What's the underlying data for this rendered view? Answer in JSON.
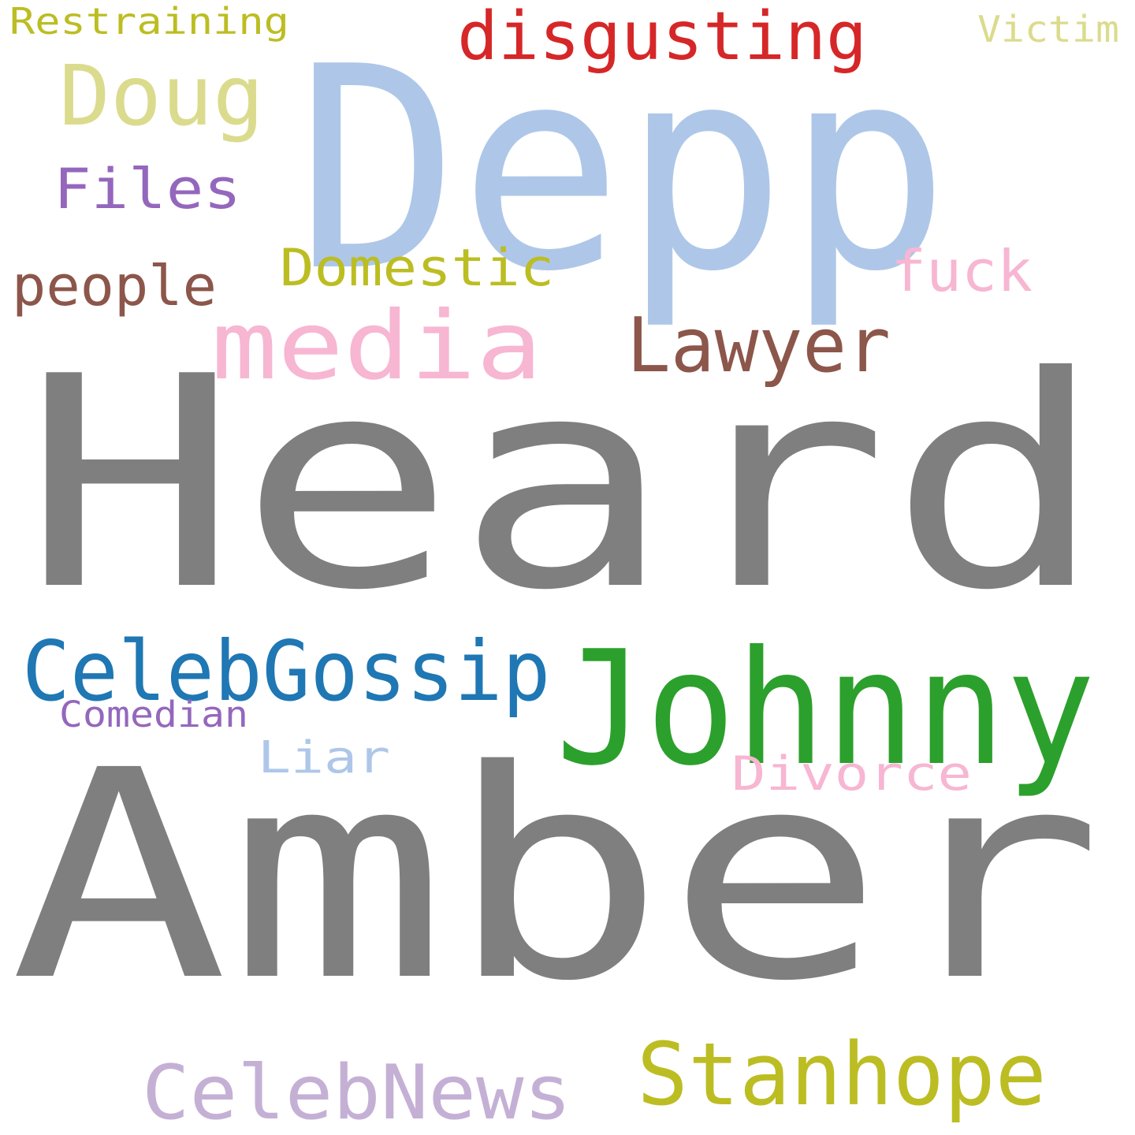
{
  "words": [
    {
      "text": "Heard",
      "color": "#7f7f7f"
    },
    {
      "text": "Amber",
      "color": "#7f7f7f"
    },
    {
      "text": "Depp",
      "color": "#aec7e8"
    },
    {
      "text": "Johnny",
      "color": "#2ca02c"
    },
    {
      "text": "media",
      "color": "#f7b6d2"
    },
    {
      "text": "CelebGossip",
      "color": "#1f77b4"
    },
    {
      "text": "Stanhope",
      "color": "#bcbd22"
    },
    {
      "text": "CelebNews",
      "color": "#c5b0d5"
    },
    {
      "text": "disgusting",
      "color": "#d62728"
    },
    {
      "text": "Doug",
      "color": "#dbdb8d"
    },
    {
      "text": "Lawyer",
      "color": "#8c564b"
    },
    {
      "text": "Files",
      "color": "#9467bd"
    },
    {
      "text": "Domestic",
      "color": "#bcbd22"
    },
    {
      "text": "people",
      "color": "#8c564b"
    },
    {
      "text": "fuck",
      "color": "#f7b6d2"
    },
    {
      "text": "Divorce",
      "color": "#f7b6d2"
    },
    {
      "text": "Liar",
      "color": "#aec7e8"
    },
    {
      "text": "Restraining",
      "color": "#bcbd22"
    },
    {
      "text": "Comedian",
      "color": "#9467bd"
    },
    {
      "text": "Victim",
      "color": "#dbdb8d"
    }
  ]
}
